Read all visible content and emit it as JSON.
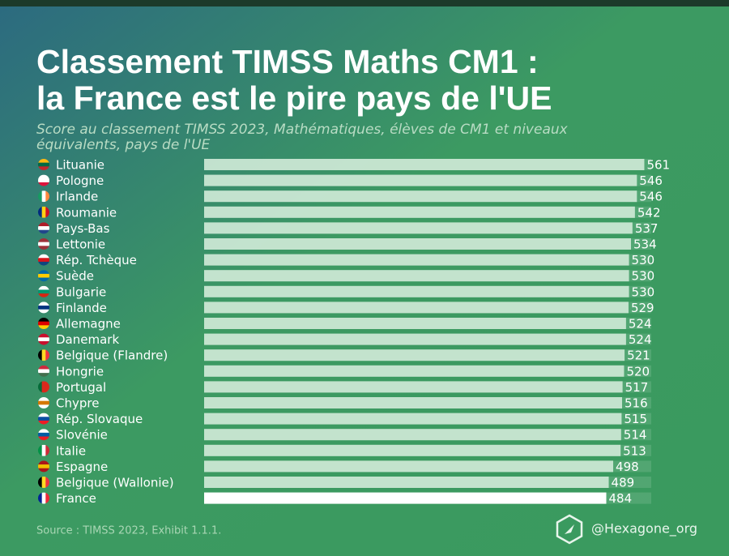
{
  "chart_data": {
    "type": "barh",
    "title": [
      "Classement TIMSS Maths CM1 :",
      "la France est le pire pays de l'UE"
    ],
    "subtitle": [
      "Score au classement TIMSS 2023, Mathématiques, élèves de CM1 et niveaux",
      "équivalents, pays de l'UE"
    ],
    "categories": [
      "Lituanie",
      "Pologne",
      "Irlande",
      "Roumanie",
      "Pays-Bas",
      "Lettonie",
      "Rép. Tchèque",
      "Suède",
      "Bulgarie",
      "Finlande",
      "Allemagne",
      "Danemark",
      "Belgique (Flandre)",
      "Hongrie",
      "Portugal",
      "Chypre",
      "Rép. Slovaque",
      "Slovénie",
      "Italie",
      "Espagne",
      "Belgique (Wallonie)",
      "France"
    ],
    "values": [
      561,
      546,
      546,
      542,
      537,
      534,
      530,
      530,
      530,
      529,
      524,
      524,
      521,
      520,
      517,
      516,
      515,
      514,
      513,
      498,
      489,
      484
    ],
    "colors": [
      "#d3ecd9",
      "#d3ecd9",
      "#d3ecd9",
      "#d3ecd9",
      "#d3ecd9",
      "#d3ecd9",
      "#d3ecd9",
      "#d3ecd9",
      "#d3ecd9",
      "#d3ecd9",
      "#d3ecd9",
      "#d3ecd9",
      "#d3ecd9",
      "#d3ecd9",
      "#d3ecd9",
      "#d3ecd9",
      "#d3ecd9",
      "#d3ecd9",
      "#d3ecd9",
      "#d3ecd9",
      "#d3ecd9",
      "#ffffff"
    ],
    "xlim": [
      -330,
      575
    ],
    "source": "Source : TIMSS 2023, Exhibit 1.1.1.",
    "handle": "@Hexagone_org"
  }
}
